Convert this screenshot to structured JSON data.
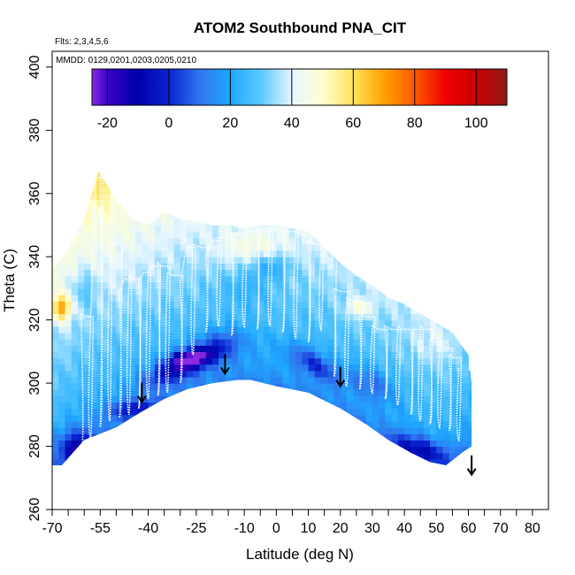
{
  "chart_data": {
    "type": "heatmap",
    "title": "ATOM2 Southbound PNA_CIT",
    "flights_label": "Flts: 2,3,4,5,6",
    "mmdd_label": "MMDD: 0129,0201,0203,0205,0210",
    "xlabel": "Latitude (deg N)",
    "ylabel": "Theta (C)",
    "xlim": [
      -70,
      85
    ],
    "ylim": [
      260,
      405
    ],
    "x_ticks": [
      -70,
      -55,
      -40,
      -25,
      -10,
      0,
      10,
      20,
      30,
      40,
      50,
      60,
      70,
      80
    ],
    "x_minor_ticks": [
      -65,
      -60,
      -50,
      -45,
      -35,
      -30,
      -20,
      -15,
      -5,
      5,
      15,
      25,
      35,
      45,
      55,
      65,
      75
    ],
    "y_ticks": [
      260,
      280,
      300,
      320,
      340,
      360,
      380,
      400
    ],
    "colorbar": {
      "range": [
        -25,
        110
      ],
      "ticks": [
        -20,
        0,
        20,
        40,
        60,
        80,
        100
      ],
      "stops": [
        {
          "v": -25,
          "c": "#8a2be2"
        },
        {
          "v": -20,
          "c": "#3a00c8"
        },
        {
          "v": -10,
          "c": "#0000a8"
        },
        {
          "v": 0,
          "c": "#0a24d2"
        },
        {
          "v": 10,
          "c": "#2f74ee"
        },
        {
          "v": 20,
          "c": "#1fa8ff"
        },
        {
          "v": 30,
          "c": "#5cc8ff"
        },
        {
          "v": 40,
          "c": "#e6f6ff"
        },
        {
          "v": 50,
          "c": "#ffffd0"
        },
        {
          "v": 60,
          "c": "#ffe25a"
        },
        {
          "v": 70,
          "c": "#ffa000"
        },
        {
          "v": 80,
          "c": "#ff5a00"
        },
        {
          "v": 90,
          "c": "#f00000"
        },
        {
          "v": 100,
          "c": "#c80000"
        },
        {
          "v": 110,
          "c": "#901818"
        }
      ]
    },
    "tropopause_arrows": [
      {
        "lat": -42,
        "theta": 294
      },
      {
        "lat": -16,
        "theta": 303
      },
      {
        "lat": 20,
        "theta": 299
      },
      {
        "lat": 61,
        "theta": 271
      }
    ],
    "coverage_top": [
      [
        -70,
        336
      ],
      [
        -65,
        342
      ],
      [
        -60,
        352
      ],
      [
        -55.5,
        367
      ],
      [
        -50,
        358
      ],
      [
        -45,
        352
      ],
      [
        -40,
        350
      ],
      [
        -35,
        354
      ],
      [
        -30,
        352
      ],
      [
        -25,
        351
      ],
      [
        -20,
        350
      ],
      [
        -15,
        350
      ],
      [
        -10,
        349
      ],
      [
        -5,
        350
      ],
      [
        0,
        350
      ],
      [
        5,
        349
      ],
      [
        10,
        348
      ],
      [
        15,
        343
      ],
      [
        20,
        338
      ],
      [
        25,
        334
      ],
      [
        30,
        331
      ],
      [
        35,
        327
      ],
      [
        40,
        325
      ],
      [
        45,
        322
      ],
      [
        50,
        319
      ],
      [
        55,
        316
      ],
      [
        60,
        309
      ],
      [
        61,
        300
      ]
    ],
    "coverage_bottom": [
      [
        -70,
        274
      ],
      [
        -67,
        274
      ],
      [
        -60,
        282
      ],
      [
        -50,
        286
      ],
      [
        -42,
        291
      ],
      [
        -35,
        295
      ],
      [
        -28,
        298
      ],
      [
        -20,
        300
      ],
      [
        -12,
        301
      ],
      [
        -8,
        301
      ],
      [
        0,
        299
      ],
      [
        10,
        297
      ],
      [
        20,
        292
      ],
      [
        28,
        287
      ],
      [
        35,
        282
      ],
      [
        42,
        278
      ],
      [
        48,
        275
      ],
      [
        53,
        274
      ],
      [
        58,
        278
      ],
      [
        61,
        280
      ]
    ],
    "field_base_value": 17,
    "field_features": [
      {
        "lat": -27,
        "theta": 308,
        "value": -18,
        "rlat": 7,
        "rtheta": 3,
        "tilt": 0.15
      },
      {
        "lat": -32,
        "theta": 304,
        "value": -8,
        "rlat": 10,
        "rtheta": 4,
        "tilt": 0.35
      },
      {
        "lat": -18,
        "theta": 312,
        "value": -2,
        "rlat": 8,
        "rtheta": 5,
        "tilt": 0.2
      },
      {
        "lat": -62,
        "theta": 279,
        "value": -12,
        "rlat": 6,
        "rtheta": 6,
        "tilt": 0
      },
      {
        "lat": -45,
        "theta": 292,
        "value": -4,
        "rlat": 8,
        "rtheta": 3,
        "tilt": 0.1
      },
      {
        "lat": 12,
        "theta": 306,
        "value": -4,
        "rlat": 8,
        "rtheta": 4,
        "tilt": -0.5
      },
      {
        "lat": 45,
        "theta": 279,
        "value": -8,
        "rlat": 9,
        "rtheta": 4,
        "tilt": -0.3
      },
      {
        "lat": 30,
        "theta": 300,
        "value": 3,
        "rlat": 7,
        "rtheta": 5,
        "tilt": -0.4
      },
      {
        "lat": -10,
        "theta": 330,
        "value": 10,
        "rlat": 8,
        "rtheta": 5,
        "tilt": 0
      },
      {
        "lat": -2,
        "theta": 337,
        "value": 4,
        "rlat": 6,
        "rtheta": 4,
        "tilt": 0
      },
      {
        "lat": -67,
        "theta": 324,
        "value": 47,
        "rlat": 3,
        "rtheta": 4,
        "tilt": 0
      },
      {
        "lat": 26,
        "theta": 324,
        "value": 33,
        "rlat": 4,
        "rtheta": 3,
        "tilt": 0
      },
      {
        "lat": -8,
        "theta": 343,
        "value": 27,
        "rlat": 10,
        "rtheta": 5,
        "tilt": 0
      },
      {
        "lat": -55,
        "theta": 362,
        "value": 25,
        "rlat": 4,
        "rtheta": 5,
        "tilt": 0
      },
      {
        "lat": 50,
        "theta": 312,
        "value": 22,
        "rlat": 8,
        "rtheta": 6,
        "tilt": 0
      },
      {
        "lat": -60,
        "theta": 330,
        "value": 8,
        "rlat": 4,
        "rtheta": 6,
        "tilt": 0
      }
    ],
    "flight_track": {
      "sampled": true,
      "profiles": [
        {
          "lat": -61,
          "bot": 275,
          "top": 322
        },
        {
          "lat": -58,
          "bot": 282,
          "top": 319
        },
        {
          "lat": -55,
          "bot": 286,
          "top": 366
        },
        {
          "lat": -52,
          "bot": 288,
          "top": 345
        },
        {
          "lat": -49,
          "bot": 289,
          "top": 329
        },
        {
          "lat": -46,
          "bot": 290,
          "top": 334
        },
        {
          "lat": -43,
          "bot": 292,
          "top": 332
        },
        {
          "lat": -40,
          "bot": 295,
          "top": 336
        },
        {
          "lat": -37,
          "bot": 296,
          "top": 338
        },
        {
          "lat": -34,
          "bot": 297,
          "top": 335
        },
        {
          "lat": -30,
          "bot": 300,
          "top": 332
        },
        {
          "lat": -26,
          "bot": 309,
          "top": 344
        },
        {
          "lat": -22,
          "bot": 316,
          "top": 341
        },
        {
          "lat": -18,
          "bot": 318,
          "top": 346
        },
        {
          "lat": -14,
          "bot": 315,
          "top": 347
        },
        {
          "lat": -10,
          "bot": 318,
          "top": 348
        },
        {
          "lat": -6,
          "bot": 317,
          "top": 349
        },
        {
          "lat": -2,
          "bot": 318,
          "top": 349
        },
        {
          "lat": 2,
          "bot": 316,
          "top": 349
        },
        {
          "lat": 6,
          "bot": 314,
          "top": 348
        },
        {
          "lat": 10,
          "bot": 313,
          "top": 345
        },
        {
          "lat": 14,
          "bot": 317,
          "top": 344
        },
        {
          "lat": 18,
          "bot": 302,
          "top": 330
        },
        {
          "lat": 22,
          "bot": 299,
          "top": 327
        },
        {
          "lat": 26,
          "bot": 298,
          "top": 322
        },
        {
          "lat": 30,
          "bot": 297,
          "top": 318
        },
        {
          "lat": 34,
          "bot": 295,
          "top": 318
        },
        {
          "lat": 38,
          "bot": 293,
          "top": 318
        },
        {
          "lat": 42,
          "bot": 290,
          "top": 316
        },
        {
          "lat": 45,
          "bot": 288,
          "top": 318
        },
        {
          "lat": 48,
          "bot": 287,
          "top": 314
        },
        {
          "lat": 51,
          "bot": 286,
          "top": 312
        },
        {
          "lat": 54,
          "bot": 285,
          "top": 309
        },
        {
          "lat": 57,
          "bot": 282,
          "top": 305
        }
      ]
    }
  }
}
